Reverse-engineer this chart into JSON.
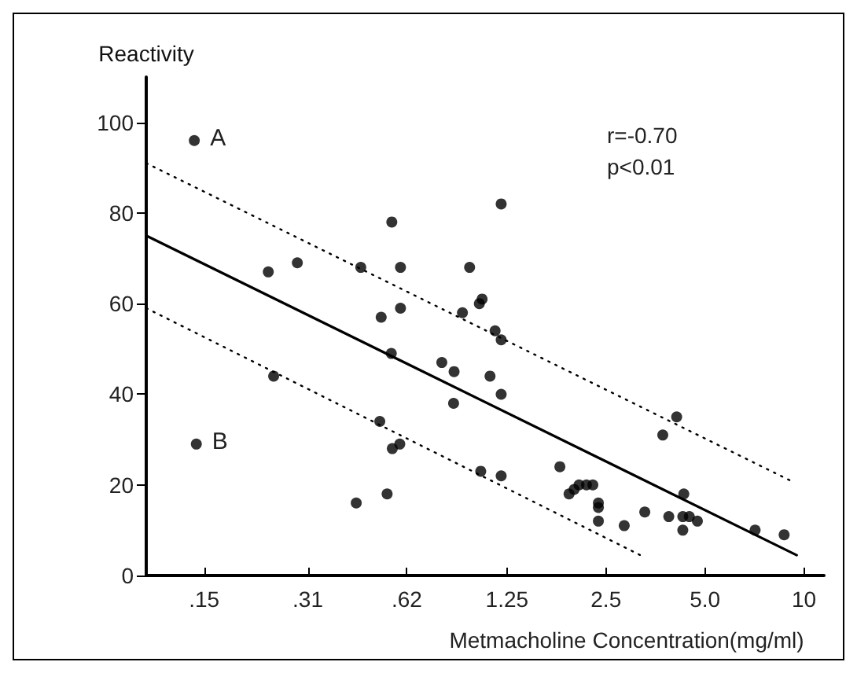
{
  "chart_data": {
    "type": "scatter",
    "xlabel": "Metmacholine Concentration(mg/ml)",
    "ylabel": "Reactivity",
    "log": "x",
    "xlim": [
      0.1,
      11.5
    ],
    "ylim": [
      0,
      110
    ],
    "xticks": [
      {
        "value": 0.15,
        "label": ".15"
      },
      {
        "value": 0.31,
        "label": ".31"
      },
      {
        "value": 0.62,
        "label": ".62"
      },
      1.25,
      2.5,
      {
        "value": 5,
        "label": "5.0"
      },
      10
    ],
    "yticks": [
      0,
      20,
      40,
      60,
      80,
      100
    ],
    "grid": false,
    "series": [
      {
        "marker": "circle",
        "color": "#000000",
        "x": [
          0.14,
          0.142,
          0.235,
          0.288,
          0.244,
          0.558,
          0.449,
          0.593,
          0.962,
          1.05,
          1.03,
          0.518,
          0.593,
          0.915,
          1.15,
          1.2,
          0.556,
          0.792,
          0.863,
          1.11,
          1.2,
          0.86,
          0.513,
          0.56,
          0.59,
          1.04,
          1.2,
          0.435,
          0.54,
          1.2,
          1.81,
          1.93,
          2.0,
          2.07,
          2.18,
          2.28,
          2.37,
          2.37,
          2.37,
          2.84,
          3.28,
          3.88,
          3.72,
          4.1,
          4.31,
          4.28,
          4.48,
          4.74,
          4.28,
          7.1,
          8.7
        ],
        "values": [
          96,
          29,
          67,
          69,
          44,
          78,
          68,
          68,
          68,
          61,
          60,
          57,
          59,
          58,
          54,
          52,
          49,
          47,
          45,
          44,
          40,
          38,
          34,
          28,
          29,
          23,
          22,
          16,
          18,
          82,
          24,
          18,
          19,
          20,
          20,
          20,
          16,
          15,
          12,
          11,
          14,
          13,
          31,
          35,
          18,
          13,
          13,
          12,
          10,
          10,
          9
        ]
      },
      {
        "type": "line",
        "color": "#000000",
        "line_style": "solid",
        "marker": "none",
        "x": [
          0.1,
          9.5
        ],
        "values": [
          75,
          4.5
        ]
      },
      {
        "type": "line",
        "color": "#000000",
        "line_style": "dotted",
        "marker": "none",
        "x": [
          0.1,
          9.06
        ],
        "values": [
          91,
          21
        ]
      },
      {
        "type": "line",
        "color": "#000000",
        "line_style": "dotted",
        "marker": "none",
        "x": [
          0.1,
          3.28
        ],
        "values": [
          59,
          4
        ]
      }
    ],
    "annotations": [
      {
        "text": "A",
        "x": 0.14,
        "y": 96
      },
      {
        "text": "B",
        "x": 0.142,
        "y": 29
      },
      "r=-0.70",
      "p<0.01"
    ]
  }
}
